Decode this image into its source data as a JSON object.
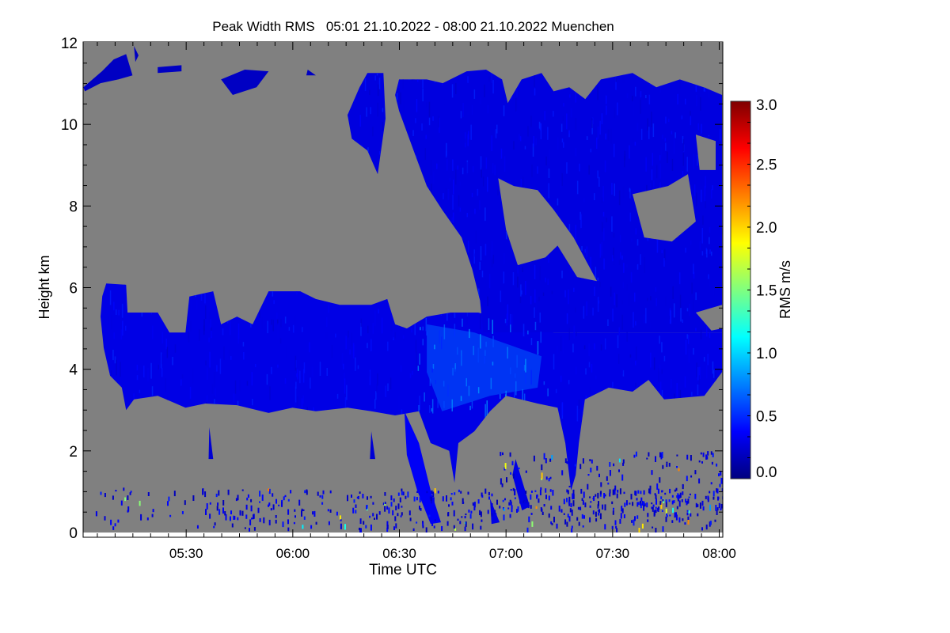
{
  "chart_data": {
    "type": "heatmap",
    "title": "Peak Width RMS   05:01 21.10.2022 - 08:00 21.10.2022 Muenchen",
    "xlabel": "Time UTC",
    "ylabel": "Height km",
    "x_unit": "minutes after 05:00 UTC",
    "xlim": [
      1,
      181
    ],
    "ylim": [
      0,
      12
    ],
    "x_ticks": [
      {
        "value": 30,
        "label": "05:30"
      },
      {
        "value": 60,
        "label": "06:00"
      },
      {
        "value": 90,
        "label": "06:30"
      },
      {
        "value": 120,
        "label": "07:00"
      },
      {
        "value": 150,
        "label": "07:30"
      },
      {
        "value": 180,
        "label": "08:00"
      }
    ],
    "y_ticks": [
      {
        "value": 0,
        "label": "0"
      },
      {
        "value": 2,
        "label": "2"
      },
      {
        "value": 4,
        "label": "4"
      },
      {
        "value": 6,
        "label": "6"
      },
      {
        "value": 8,
        "label": "8"
      },
      {
        "value": 10,
        "label": "10"
      },
      {
        "value": 12,
        "label": "12"
      }
    ],
    "colorbar": {
      "label": "RMS m/s",
      "range": [
        0,
        3
      ],
      "colormap": "jet",
      "ticks": [
        {
          "value": 0,
          "label": "0.0"
        },
        {
          "value": 0.5,
          "label": "0.5"
        },
        {
          "value": 1.0,
          "label": "1.0"
        },
        {
          "value": 1.5,
          "label": "1.5"
        },
        {
          "value": 2.0,
          "label": "2.0"
        },
        {
          "value": 2.5,
          "label": "2.5"
        },
        {
          "value": 3.0,
          "label": "3.0"
        }
      ]
    },
    "missing_color": "#808080",
    "regions": [
      {
        "name": "mid-level-layer",
        "value": 0.3,
        "outer": [
          [
            6.4,
            5.79
          ],
          [
            7.5,
            6.1
          ],
          [
            13.1,
            6.07
          ],
          [
            13.5,
            5.39
          ],
          [
            22,
            5.39
          ],
          [
            25.3,
            4.9
          ],
          [
            29.8,
            4.9
          ],
          [
            30.9,
            5.78
          ],
          [
            37.6,
            5.91
          ],
          [
            39.8,
            5.1
          ],
          [
            44.3,
            5.29
          ],
          [
            48.7,
            5.1
          ],
          [
            53.2,
            5.91
          ],
          [
            62.1,
            5.91
          ],
          [
            66.5,
            5.72
          ],
          [
            73.2,
            5.58
          ],
          [
            82.1,
            5.58
          ],
          [
            86.6,
            5.72
          ],
          [
            88.8,
            5.1
          ],
          [
            92.1,
            5.0
          ],
          [
            97.7,
            5.29
          ],
          [
            104.4,
            5.39
          ],
          [
            112.2,
            5.39
          ],
          [
            133.4,
            4.9
          ],
          [
            180.8,
            4.9
          ],
          [
            180.8,
            3.93
          ],
          [
            175.8,
            3.35
          ],
          [
            164.5,
            3.26
          ],
          [
            160.1,
            3.74
          ],
          [
            155.6,
            3.45
          ],
          [
            148.9,
            3.55
          ],
          [
            142.2,
            3.26
          ],
          [
            140.5,
            2.19
          ],
          [
            139.6,
            1.41
          ],
          [
            138.3,
            1.03
          ],
          [
            136.7,
            2.19
          ],
          [
            134.5,
            3.06
          ],
          [
            128.9,
            3.16
          ],
          [
            120,
            3.35
          ],
          [
            115.5,
            2.97
          ],
          [
            111.1,
            2.48
          ],
          [
            106.6,
            2.19
          ],
          [
            105.5,
            1.22
          ],
          [
            104,
            2.0
          ],
          [
            98.8,
            2.19
          ],
          [
            95.5,
            2.97
          ],
          [
            88.8,
            2.87
          ],
          [
            82.1,
            2.97
          ],
          [
            75.4,
            3.06
          ],
          [
            66.5,
            2.97
          ],
          [
            59.9,
            3.06
          ],
          [
            53.2,
            2.93
          ],
          [
            44.3,
            3.12
          ],
          [
            35.4,
            3.16
          ],
          [
            29.8,
            3.06
          ],
          [
            22,
            3.35
          ],
          [
            15.3,
            3.26
          ],
          [
            13.1,
            3.0
          ],
          [
            11.9,
            3.55
          ],
          [
            8.6,
            3.84
          ],
          [
            6.8,
            4.52
          ],
          [
            5.9,
            5.29
          ]
        ],
        "holes": []
      },
      {
        "name": "upper-cloud",
        "value": 0.28,
        "outer": [
          [
            88.8,
            10.72
          ],
          [
            89.9,
            11.1
          ],
          [
            97.7,
            11.1
          ],
          [
            102.2,
            11.01
          ],
          [
            108.9,
            11.3
          ],
          [
            114.4,
            11.34
          ],
          [
            118.9,
            11.1
          ],
          [
            120.5,
            10.52
          ],
          [
            124.4,
            11.1
          ],
          [
            130,
            11.26
          ],
          [
            133.4,
            10.81
          ],
          [
            137.8,
            10.91
          ],
          [
            142.3,
            10.62
          ],
          [
            146.7,
            11.1
          ],
          [
            155.6,
            11.26
          ],
          [
            162.3,
            10.91
          ],
          [
            168.9,
            11.1
          ],
          [
            175.6,
            10.91
          ],
          [
            180.8,
            10.72
          ],
          [
            180.8,
            4.9
          ],
          [
            113.6,
            4.9
          ],
          [
            112.7,
            5.68
          ],
          [
            110.5,
            6.45
          ],
          [
            107.5,
            7.23
          ],
          [
            102,
            7.91
          ],
          [
            97.7,
            8.49
          ],
          [
            94.4,
            9.26
          ],
          [
            89.9,
            10.33
          ]
        ],
        "holes": [
          [
            [
              117.8,
              8.68
            ],
            [
              120,
              7.42
            ],
            [
              123.3,
              6.55
            ],
            [
              131.1,
              6.74
            ],
            [
              134.5,
              7.03
            ],
            [
              140,
              6.26
            ],
            [
              145.6,
              6.16
            ],
            [
              139,
              7.23
            ],
            [
              133.4,
              7.91
            ],
            [
              128.9,
              8.39
            ],
            [
              122.2,
              8.49
            ]
          ],
          [
            [
              155.6,
              8.29
            ],
            [
              158.9,
              7.23
            ],
            [
              166.7,
              7.13
            ],
            [
              173.4,
              7.62
            ],
            [
              171.2,
              8.78
            ],
            [
              165.6,
              8.49
            ]
          ],
          [
            [
              173.4,
              9.75
            ],
            [
              174.5,
              8.88
            ],
            [
              179,
              8.88
            ],
            [
              179,
              9.59
            ]
          ],
          [
            [
              173.4,
              5.39
            ],
            [
              177.8,
              4.95
            ],
            [
              180.8,
              5.0
            ],
            [
              180.8,
              5.58
            ]
          ]
        ]
      },
      {
        "name": "cirrus-patch",
        "value": 0.28,
        "outer": [
          [
            75.4,
            10.23
          ],
          [
            78.8,
            10.91
          ],
          [
            81,
            11.26
          ],
          [
            85.5,
            11.26
          ],
          [
            86.1,
            10.14
          ],
          [
            83.9,
            8.78
          ],
          [
            81,
            9.36
          ],
          [
            76.6,
            9.65
          ]
        ],
        "holes": []
      },
      {
        "name": "fall-streak-a",
        "value": 0.35,
        "outer": [
          [
            91.4,
            2.97
          ],
          [
            95.5,
            2.19
          ],
          [
            98.8,
            1.03
          ],
          [
            101.7,
            0.25
          ],
          [
            98.8,
            0.21
          ],
          [
            95,
            1.03
          ],
          [
            92.1,
            1.9
          ]
        ],
        "holes": []
      },
      {
        "name": "fall-streak-b",
        "value": 0.3,
        "outer": [
          [
            122.7,
            1.8
          ],
          [
            126.7,
            0.64
          ],
          [
            124.5,
            0.54
          ],
          [
            121.8,
            1.41
          ]
        ],
        "holes": []
      },
      {
        "name": "fall-streak-c",
        "value": 0.3,
        "outer": [
          [
            115.5,
            0.83
          ],
          [
            118.2,
            0.25
          ],
          [
            115.9,
            0.21
          ]
        ],
        "holes": []
      },
      {
        "name": "fall-streak-d",
        "value": 0.25,
        "outer": [
          [
            82.1,
            2.48
          ],
          [
            83.2,
            1.8
          ],
          [
            81.7,
            1.8
          ]
        ],
        "holes": []
      },
      {
        "name": "fall-streak-e",
        "value": 0.25,
        "outer": [
          [
            36.5,
            2.58
          ],
          [
            37.6,
            1.8
          ],
          [
            36.3,
            1.8
          ]
        ],
        "holes": []
      },
      {
        "name": "top-left-cirrus",
        "value": 0.2,
        "outer": [
          [
            1.1,
            10.91
          ],
          [
            6.3,
            11.3
          ],
          [
            9.6,
            11.59
          ],
          [
            13.1,
            11.72
          ],
          [
            14.9,
            11.2
          ],
          [
            10.9,
            11.1
          ],
          [
            5.9,
            11.01
          ],
          [
            1.5,
            10.81
          ]
        ],
        "holes": []
      },
      {
        "name": "top-cirrus-2",
        "value": 0.2,
        "outer": [
          [
            15.3,
            11.92
          ],
          [
            16.6,
            11.69
          ],
          [
            15.7,
            11.53
          ]
        ],
        "holes": []
      },
      {
        "name": "top-cirrus-3",
        "value": 0.2,
        "outer": [
          [
            39.8,
            11.1
          ],
          [
            46.5,
            11.34
          ],
          [
            53.2,
            11.3
          ],
          [
            49.8,
            10.91
          ],
          [
            43.1,
            10.72
          ]
        ],
        "holes": []
      },
      {
        "name": "top-cirrus-4",
        "value": 0.2,
        "outer": [
          [
            21.98,
            11.4
          ],
          [
            28.7,
            11.45
          ],
          [
            28.7,
            11.3
          ],
          [
            21.98,
            11.26
          ]
        ],
        "holes": []
      },
      {
        "name": "top-cirrus-5",
        "value": 0.2,
        "outer": [
          [
            64.2,
            11.34
          ],
          [
            66.5,
            11.2
          ],
          [
            63.8,
            11.2
          ]
        ],
        "holes": []
      },
      {
        "name": "enhanced-core",
        "value": 0.65,
        "outer": [
          [
            97.7,
            5.1
          ],
          [
            111.1,
            4.9
          ],
          [
            130,
            4.32
          ],
          [
            128.9,
            3.55
          ],
          [
            115.5,
            3.35
          ],
          [
            102,
            2.97
          ],
          [
            97.7,
            3.93
          ]
        ],
        "holes": []
      }
    ]
  }
}
